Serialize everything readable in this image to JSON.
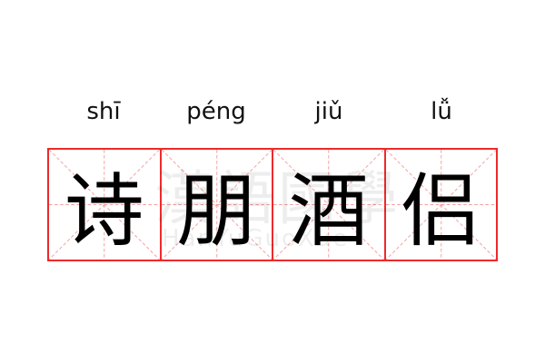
{
  "pinyin": [
    "shī",
    "péng",
    "jiǔ",
    "lǚ"
  ],
  "characters": [
    "诗",
    "朋",
    "酒",
    "侣"
  ],
  "watermark": {
    "cjk": "漢語國學",
    "latin": "HanYuGuoXue"
  },
  "colors": {
    "grid_border": "#ee2a2a",
    "guide_lines": "#f5a0a0"
  }
}
